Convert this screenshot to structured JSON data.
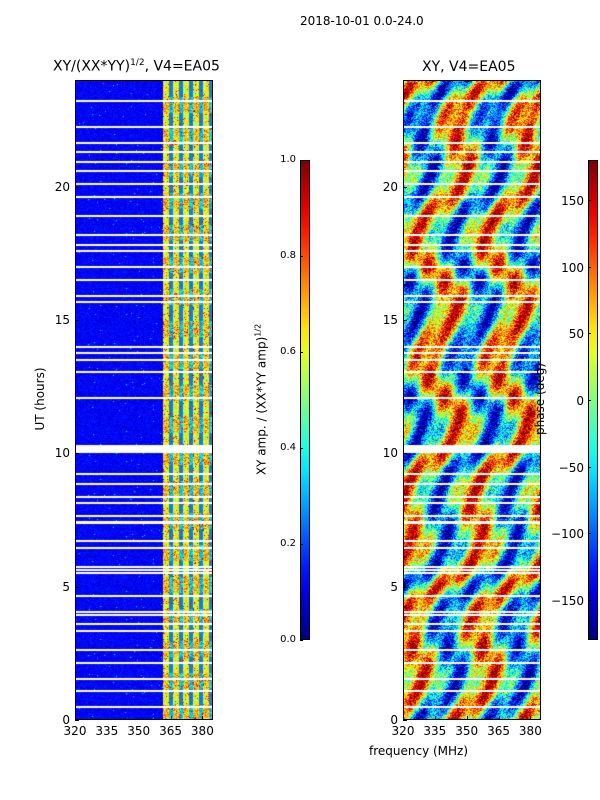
{
  "figure": {
    "suptitle": "2018-10-01 0.0-24.0",
    "shared_xlabel": "frequency (MHz)"
  },
  "chart_data": [
    {
      "type": "heatmap",
      "title_text": "XY/(XX*YY)",
      "title_exponent": "1/2",
      "title_suffix": ", V4=EA05",
      "ylabel": "UT (hours)",
      "xlabel": "frequency (MHz)",
      "xlim": [
        320,
        385
      ],
      "ylim": [
        0,
        24
      ],
      "xticks": [
        320,
        335,
        350,
        365,
        380
      ],
      "yticks": [
        0,
        5,
        10,
        15,
        20
      ],
      "colorbar": {
        "label_text": "XY amp. / (XX*YY amp)",
        "label_exponent": "1/2",
        "range": [
          0.0,
          1.0
        ],
        "ticks": [
          "0.0",
          "0.2",
          "0.4",
          "0.6",
          "0.8",
          "1.0"
        ],
        "colormap": "jet"
      }
    },
    {
      "type": "heatmap",
      "title_text": "XY, V4=EA05",
      "ylabel": "",
      "xlabel": "frequency (MHz)",
      "xlim": [
        320,
        385
      ],
      "ylim": [
        0,
        24
      ],
      "xticks": [
        320,
        335,
        350,
        365,
        380
      ],
      "yticks": [
        0,
        5,
        10,
        15,
        20
      ],
      "colorbar": {
        "label_text": "phase (deg)",
        "range": [
          -180,
          180
        ],
        "ticks": [
          "−150",
          "−100",
          "−50",
          "0",
          "50",
          "100",
          "150"
        ],
        "tick_values": [
          -150,
          -100,
          -50,
          0,
          50,
          100,
          150
        ],
        "colormap": "jet"
      }
    }
  ]
}
